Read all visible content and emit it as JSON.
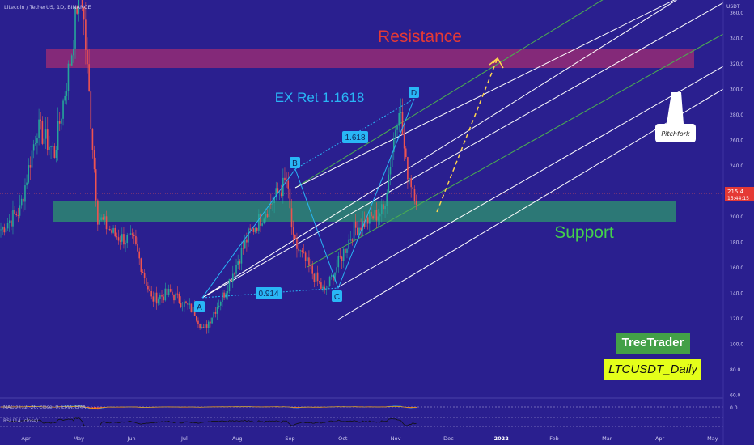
{
  "header": {
    "symbol_line": "Litecoin / TetherUS, 1D, BINANCE"
  },
  "chart_data": {
    "type": "candlestick",
    "title": "Litecoin / TetherUS, 1D, BINANCE",
    "y_unit": "USDT",
    "ylim": [
      60,
      370
    ],
    "y_ticks": [
      "360.0",
      "340.0",
      "320.0",
      "300.0",
      "280.0",
      "260.0",
      "240.0",
      "220.0",
      "200.0",
      "180.0",
      "160.0",
      "140.0",
      "120.0",
      "100.0",
      "80.0",
      "60.0"
    ],
    "x_ticks": [
      "Apr",
      "May",
      "Jun",
      "Jul",
      "Aug",
      "Sep",
      "Oct",
      "Nov",
      "Dec",
      "2022",
      "Feb",
      "Mar",
      "Apr",
      "May"
    ],
    "last_price": "215.4",
    "countdown": "15:44:15",
    "approx_closes": [
      {
        "date": "2021-03-25",
        "close": 190
      },
      {
        "date": "2021-04-05",
        "close": 205
      },
      {
        "date": "2021-04-15",
        "close": 270
      },
      {
        "date": "2021-04-25",
        "close": 250
      },
      {
        "date": "2021-05-05",
        "close": 330
      },
      {
        "date": "2021-05-10",
        "close": 390
      },
      {
        "date": "2021-05-20",
        "close": 200
      },
      {
        "date": "2021-05-30",
        "close": 185
      },
      {
        "date": "2021-06-10",
        "close": 180
      },
      {
        "date": "2021-06-20",
        "close": 135
      },
      {
        "date": "2021-07-01",
        "close": 140
      },
      {
        "date": "2021-07-15",
        "close": 125
      },
      {
        "date": "2021-07-20",
        "close": 110
      },
      {
        "date": "2021-08-01",
        "close": 140
      },
      {
        "date": "2021-08-15",
        "close": 185
      },
      {
        "date": "2021-09-06",
        "close": 228
      },
      {
        "date": "2021-09-10",
        "close": 180
      },
      {
        "date": "2021-09-28",
        "close": 140
      },
      {
        "date": "2021-10-15",
        "close": 190
      },
      {
        "date": "2021-11-01",
        "close": 205
      },
      {
        "date": "2021-11-10",
        "close": 290
      },
      {
        "date": "2021-11-14",
        "close": 240
      },
      {
        "date": "2021-11-20",
        "close": 215
      }
    ],
    "zones": [
      {
        "label": "Resistance",
        "from": 318,
        "to": 334,
        "color": "#c2306a"
      },
      {
        "label": "Support",
        "from": 192,
        "to": 207,
        "color": "#2e9e6b"
      }
    ],
    "pattern_points": [
      {
        "label": "A",
        "value": 131
      },
      {
        "label": "B",
        "value": 232
      },
      {
        "label": "C",
        "value": 140
      },
      {
        "label": "D",
        "value": 290
      }
    ],
    "ratios": [
      "1.618",
      "0.914"
    ],
    "annotations": [
      "EX Ret 1.1618",
      "Pitchfork"
    ]
  },
  "indicators": {
    "macd_label": "MACD (12, 26, close, 9, EMA, EMA)",
    "rsi_label": "RSI (14, close)",
    "macd_tick": "0.0"
  },
  "branding": {
    "name": "TreeTrader",
    "pair_label": "LTCUSDT_Daily"
  },
  "colors": {
    "background": "#2a1f8f",
    "bull": "#26a69a",
    "bear": "#ef5350",
    "pattern_line": "#29b6f6",
    "resistance_text": "#e53935",
    "support_text": "#43d14b",
    "pitchfork": "#ffffff",
    "projection": "#ffd54f"
  }
}
